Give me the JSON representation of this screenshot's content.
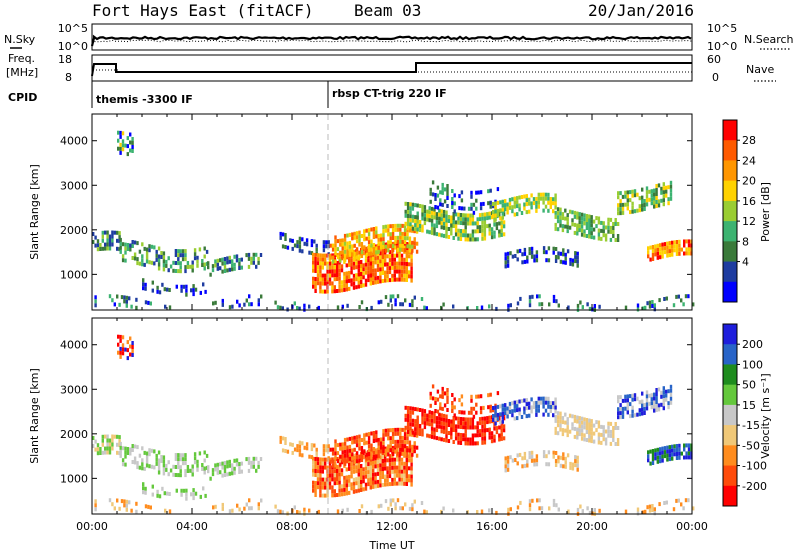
{
  "header": {
    "title": "Fort Hays East (fitACF)",
    "beam": "Beam 03",
    "date": "20/Jan/2016"
  },
  "noise_panel": {
    "left_label": "N.Sky",
    "right_label": "N.Search",
    "left_ticks": [
      "10^5",
      "10^0"
    ],
    "right_ticks": [
      "10^5",
      "10^0"
    ]
  },
  "freq_panel": {
    "left_label_1": "Freq.",
    "left_label_2": "[MHz]",
    "cpid_label": "CPID",
    "left_ticks": [
      "18",
      "8"
    ],
    "right_ticks": [
      "60",
      "0"
    ],
    "right_label": "Nave",
    "cpid_1": "themis -3300 IF",
    "cpid_2": "rbsp CT-trig 220 IF"
  },
  "chart_data": [
    {
      "type": "heatmap",
      "quantity": "Power",
      "ylabel": "Slant Range [km]",
      "xlabel": "Time UT",
      "x_ticks": [
        "00:00",
        "04:00",
        "08:00",
        "12:00",
        "16:00",
        "20:00",
        "00:00"
      ],
      "y_ticks": [
        "1000",
        "2000",
        "3000",
        "4000"
      ],
      "ylim": [
        200,
        4600
      ],
      "colorbar_label": "Power [dB]",
      "colorbar_ticks": [
        "28",
        "24",
        "20",
        "16",
        "12",
        "8",
        "4"
      ],
      "colorbar_colors": [
        "#ff0000",
        "#ff5a00",
        "#ff9600",
        "#ffd200",
        "#9acd32",
        "#3cb371",
        "#3a7a3a",
        "#1e3ca0",
        "#0000ff"
      ]
    },
    {
      "type": "heatmap",
      "quantity": "Velocity",
      "ylabel": "Slant Range [km]",
      "xlabel": "Time UT",
      "x_ticks": [
        "00:00",
        "04:00",
        "08:00",
        "12:00",
        "16:00",
        "20:00",
        "00:00"
      ],
      "y_ticks": [
        "1000",
        "2000",
        "3000",
        "4000"
      ],
      "ylim": [
        200,
        4600
      ],
      "colorbar_label": "Velocity [m s⁻¹]",
      "colorbar_ticks": [
        "200",
        "100",
        "50",
        "15",
        "-15",
        "-50",
        "-100",
        "-200"
      ],
      "colorbar_colors": [
        "#1e1edc",
        "#2864c8",
        "#1e8c1e",
        "#64c83c",
        "#c8c8c8",
        "#f0c878",
        "#ff8c1e",
        "#ff4b0a",
        "#ff0000"
      ]
    }
  ]
}
